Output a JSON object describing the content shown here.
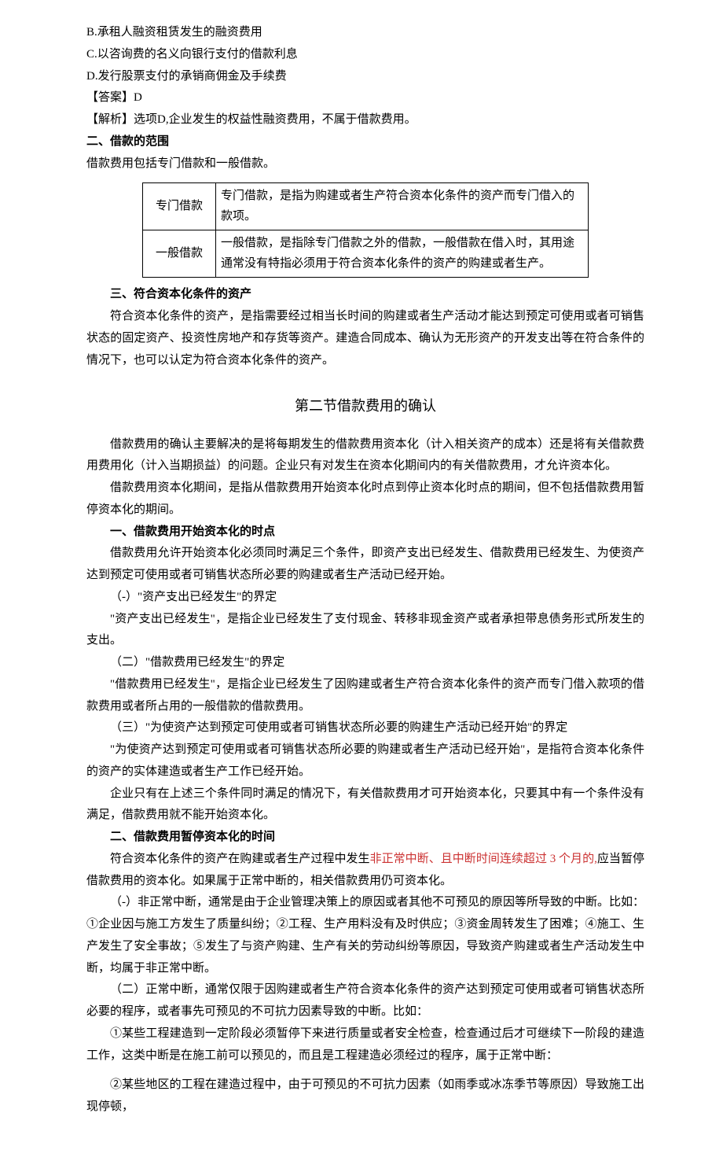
{
  "opts": {
    "b": "B.承租人融资租赁发生的融资费用",
    "c": "C.以咨询费的名义向银行支付的借款利息",
    "d": "D.发行股票支付的承销商佣金及手续费"
  },
  "answer": "【答案】D",
  "analysis": "【解析】选项D,企业发生的权益性融资费用，不属于借款费用。",
  "h2_scope": "二、借款的范围",
  "scope_intro": "借款费用包括专门借款和一般借款。",
  "table": {
    "r1_l": "专门借款",
    "r1_v": "专门借款，是指为购建或者生产符合资本化条件的资产而专门借入的款项。",
    "r2_l": "一般借款",
    "r2_v": "一般借款，是指除专门借款之外的借款，一般借款在借入时，其用途通常没有特指必须用于符合资本化条件的资产的购建或者生产。"
  },
  "h3_asset": "三、符合资本化条件的资产",
  "asset_para": "符合资本化条件的资产，是指需要经过相当长时间的购建或者生产活动才能达到预定可使用或者可销售状态的固定资产、投资性房地产和存货等资产。建造合同成本、确认为无形资产的开发支出等在符合条件的情况下，也可以认定为符合资本化条件的资产。",
  "sec2_title": "第二节借款费用的确认",
  "s2_p1": "借款费用的确认主要解决的是将每期发生的借款费用资本化（计入相关资产的成本）还是将有关借款费用费用化（计入当期损益）的问题。企业只有对发生在资本化期间内的有关借款费用，才允许资本化。",
  "s2_p2": "借款费用资本化期间，是指从借款费用开始资本化时点到停止资本化时点的期间，但不包括借款费用暂停资本化的期间。",
  "h_start": "一、借款费用开始资本化的时点",
  "start_p1": "借款费用允许开始资本化必须同时满足三个条件，即资产支出已经发生、借款费用已经发生、为使资产达到预定可使用或者可销售状态所必要的购建或者生产活动已经开始。",
  "start_a": "（-）\"资产支出已经发生\"的界定",
  "start_a1": "\"资产支出已经发生\"，是指企业已经发生了支付现金、转移非现金资产或者承担带息债务形式所发生的支出。",
  "start_b": "（二）\"借款费用已经发生\"的界定",
  "start_b1": "\"借款费用已经发生\"，是指企业已经发生了因购建或者生产符合资本化条件的资产而专门借入款项的借款费用或者所占用的一般借款的借款费用。",
  "start_c": "（三）\"为使资产达到预定可使用或者可销售状态所必要的购建生产活动已经开始\"的界定",
  "start_c1": "\"为使资产达到预定可使用或者可销售状态所必要的购建或者生产活动已经开始\"，是指符合资本化条件的资产的实体建造或者生产工作已经开始。",
  "start_p2": "企业只有在上述三个条件同时满足的情况下，有关借款费用才可开始资本化，只要其中有一个条件没有满足，借款费用就不能开始资本化。",
  "h_pause": "二、借款费用暂停资本化的时间",
  "pause_p1a": "符合资本化条件的资产在购建或者生产过程中发生",
  "pause_p1b": "非正常中断、且中断时间连续超过 3 个月的,",
  "pause_p1c": "应当暂停借款费用的资本化。如果属于正常中断的，相关借款费用仍可资本化。",
  "pause_a": "（-）非正常中断，通常是由于企业管理决策上的原因或者其他不可预见的原因等所导致的中断。比如：①企业因与施工方发生了质量纠纷；②工程、生产用料没有及时供应；③资金周转发生了困难；④施工、生产发生了安全事故；⑤发生了与资产购建、生产有关的劳动纠纷等原因，导致资产购建或者生产活动发生中断，均属于非正常中断。",
  "pause_b": "（二）正常中断，通常仅限于因购建或者生产符合资本化条件的资产达到预定可使用或者可销售状态所必要的程序，或者事先可预见的不可抗力因素导致的中断。比如：",
  "pause_b1": "①某些工程建造到一定阶段必须暂停下来进行质量或者安全检查，检查通过后才可继续下一阶段的建造工作，这类中断是在施工前可以预见的，而且是工程建造必须经过的程序，属于正常中断：",
  "pause_b2": "②某些地区的工程在建造过程中，由于可预见的不可抗力因素（如雨季或冰冻季节等原因）导致施工出现停顿，"
}
